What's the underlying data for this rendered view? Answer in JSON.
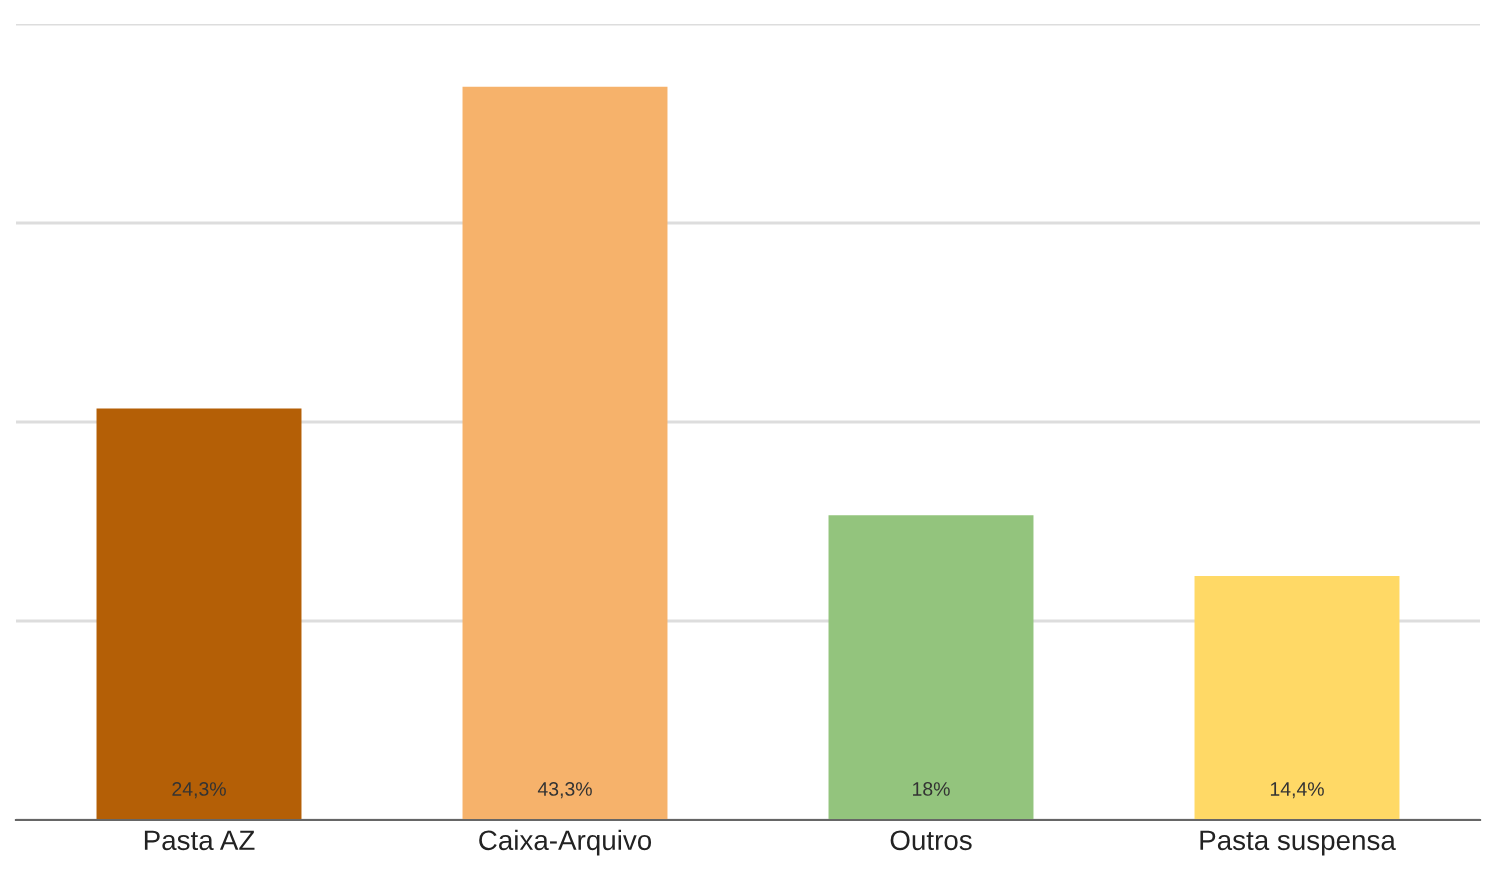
{
  "chart_data": {
    "type": "bar",
    "categories": [
      "Pasta AZ",
      "Caixa-Arquivo",
      "Outros",
      "Pasta suspensa"
    ],
    "values": [
      24.3,
      43.3,
      18,
      14.4
    ],
    "colors": [
      "#b45f06",
      "#f6b26b",
      "#93c47d",
      "#ffd966"
    ],
    "value_labels": [
      "24,3%",
      "43,3%",
      "18%",
      "14,4%"
    ],
    "ylim": [
      0,
      47
    ],
    "yticks": [
      {
        "value": 0,
        "label": null
      },
      {
        "value": 11.75,
        "label": null
      },
      {
        "value": 23.5,
        "label": null
      },
      {
        "value": 35.25,
        "label": null
      },
      {
        "value": 47,
        "label": null
      }
    ],
    "grid": "y",
    "tick_labels": "x",
    "legend": false
  }
}
